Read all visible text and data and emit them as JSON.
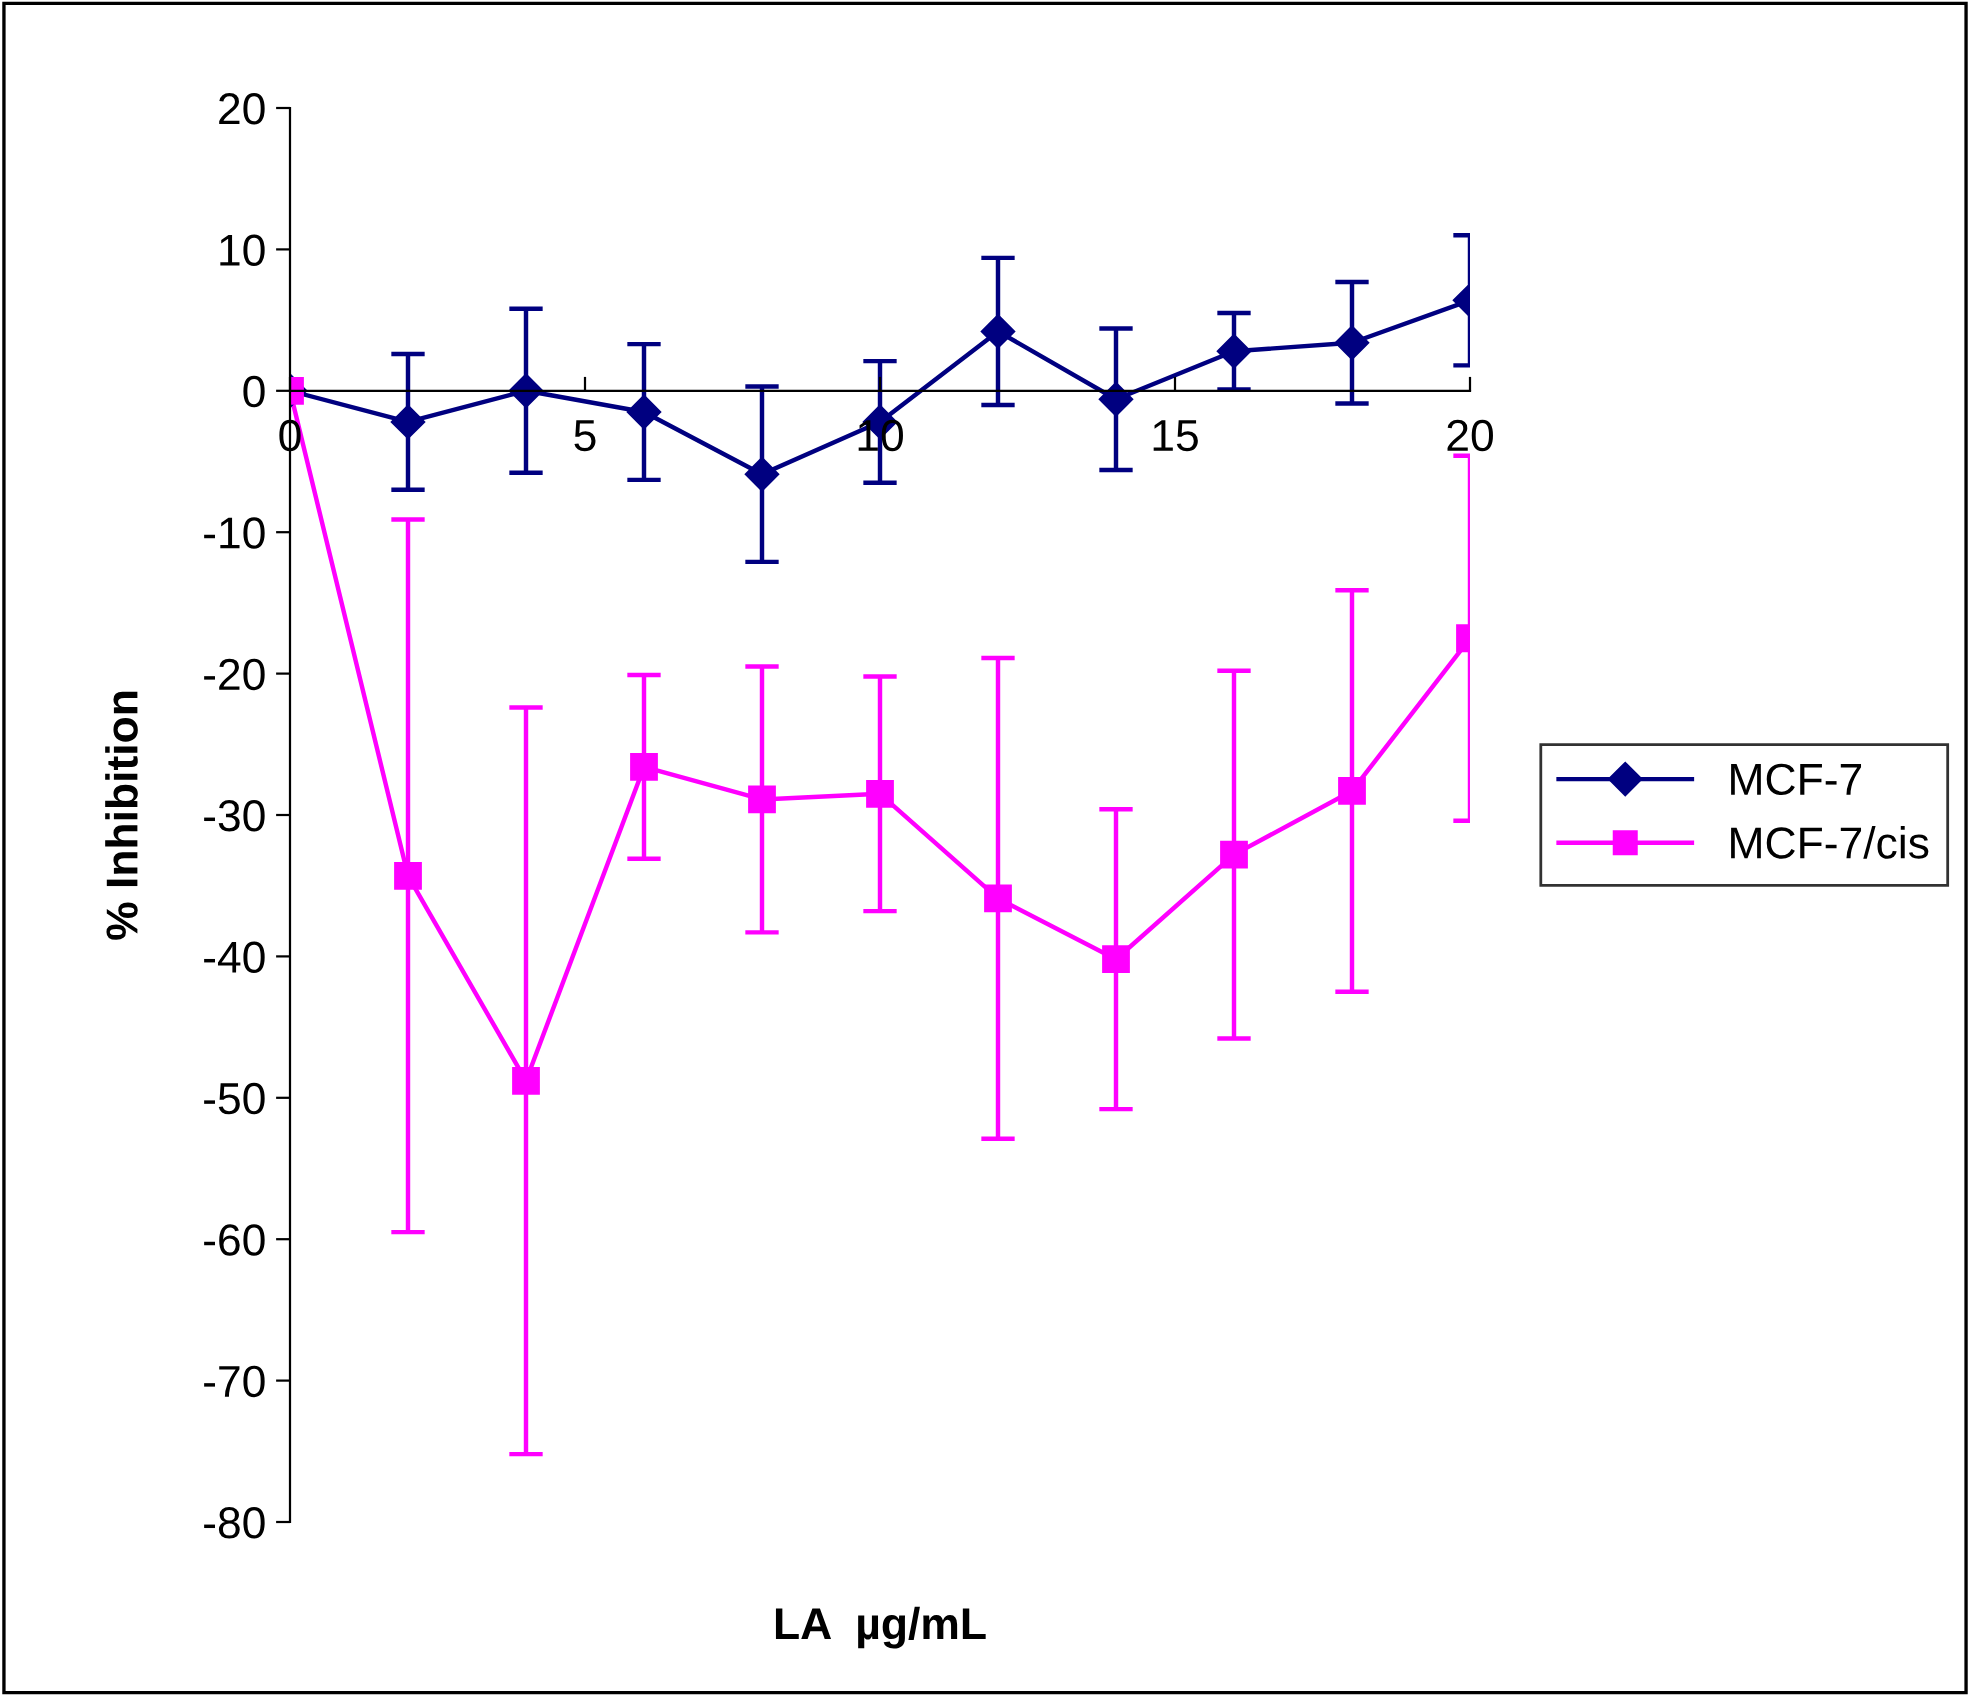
{
  "chart_data": {
    "type": "line",
    "xlabel": "LA  µg/mL",
    "ylabel": "% Inhibition",
    "xlim": [
      0,
      20
    ],
    "xticks": [
      0,
      5,
      10,
      15,
      20
    ],
    "ylim": [
      -80,
      20
    ],
    "yticks": [
      -80,
      -70,
      -60,
      -50,
      -40,
      -30,
      -20,
      -10,
      0,
      10,
      20
    ],
    "grid": false,
    "legend": "right",
    "line_style": "solid",
    "series": [
      {
        "name": "MCF-7",
        "color": "#000080",
        "marker": "diamond",
        "x": [
          0,
          2,
          4,
          6,
          8,
          10,
          12,
          14,
          16,
          18,
          20
        ],
        "values": [
          0,
          -2.2,
          0,
          -1.5,
          -5.9,
          -2.2,
          4.2,
          -0.6,
          2.8,
          3.4,
          6.4
        ],
        "errors": [
          null,
          4.8,
          5.8,
          4.8,
          6.2,
          4.3,
          5.2,
          5,
          2.7,
          4.3,
          4.6
        ]
      },
      {
        "name": "MCF-7/cis",
        "color": "#ff00ff",
        "marker": "square",
        "x": [
          0,
          2,
          4,
          6,
          8,
          10,
          12,
          14,
          16,
          18,
          20
        ],
        "values": [
          0,
          -34.3,
          -48.8,
          -26.6,
          -28.9,
          -28.5,
          -35.9,
          -40.2,
          -32.8,
          -28.3,
          -17.5
        ],
        "errors": [
          null,
          25.2,
          26.4,
          6.5,
          9.4,
          8.3,
          17,
          10.6,
          13,
          14.2,
          12.9
        ]
      }
    ]
  }
}
